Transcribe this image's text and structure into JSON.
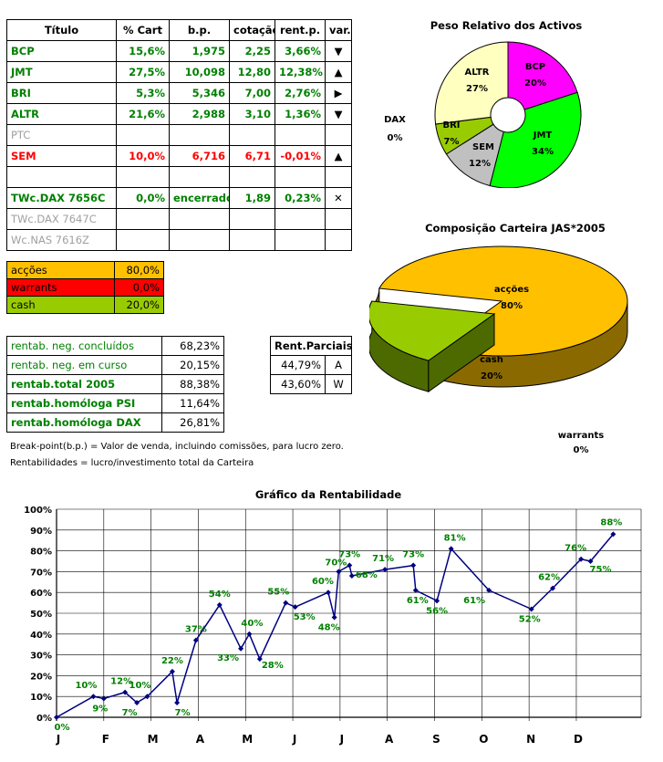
{
  "holdings": {
    "headers": [
      "Título",
      "% Cart",
      "b.p.",
      "cotação",
      "rent.p.",
      "var."
    ],
    "rows": [
      {
        "titulo": "BCP",
        "cart": "15,6%",
        "bp": "1,975",
        "cotacao": "2,25",
        "rent": "3,66%",
        "var": "▼",
        "style": "green"
      },
      {
        "titulo": "JMT",
        "cart": "27,5%",
        "bp": "10,098",
        "cotacao": "12,80",
        "rent": "12,38%",
        "var": "▲",
        "style": "green"
      },
      {
        "titulo": "BRI",
        "cart": "5,3%",
        "bp": "5,346",
        "cotacao": "7,00",
        "rent": "2,76%",
        "var": "▶",
        "style": "green"
      },
      {
        "titulo": "ALTR",
        "cart": "21,6%",
        "bp": "2,988",
        "cotacao": "3,10",
        "rent": "1,36%",
        "var": "▼",
        "style": "green"
      },
      {
        "titulo": "PTC",
        "cart": "",
        "bp": "",
        "cotacao": "",
        "rent": "",
        "var": "",
        "style": "gray"
      },
      {
        "titulo": "SEM",
        "cart": "10,0%",
        "bp": "6,716",
        "cotacao": "6,71",
        "rent": "-0,01%",
        "var": "▲",
        "style": "red"
      },
      {
        "titulo": "",
        "cart": "",
        "bp": "",
        "cotacao": "",
        "rent": "",
        "var": "",
        "style": "green"
      },
      {
        "titulo": "TWc.DAX 7656C",
        "cart": "0,0%",
        "bp": "encerrado",
        "cotacao": "1,89",
        "rent": "0,23%",
        "var": "✕",
        "style": "green"
      },
      {
        "titulo": "TWc.DAX 7647C",
        "cart": "",
        "bp": "",
        "cotacao": "",
        "rent": "",
        "var": "",
        "style": "gray"
      },
      {
        "titulo": "Wc.NAS 7616Z",
        "cart": "",
        "bp": "",
        "cotacao": "",
        "rent": "",
        "var": "",
        "style": "gray"
      }
    ]
  },
  "allocation": [
    {
      "label": "acções",
      "value": "80,0%",
      "color": "#ffc000"
    },
    {
      "label": "warrants",
      "value": "0,0%",
      "color": "#ff0000"
    },
    {
      "label": "cash",
      "value": "20,0%",
      "color": "#99cc00"
    }
  ],
  "returns": [
    {
      "label": "rentab. neg. concluídos",
      "value": "68,23%",
      "bold": false
    },
    {
      "label": "rentab. neg. em curso",
      "value": "20,15%",
      "bold": false
    },
    {
      "label": "rentab.total 2005",
      "value": "88,38%",
      "bold": true
    },
    {
      "label": "rentab.homóloga PSI",
      "value": "11,64%",
      "bold": true
    },
    {
      "label": "rentab.homóloga DAX",
      "value": "26,81%",
      "bold": true
    }
  ],
  "partials": {
    "title": "Rent.Parciais",
    "rows": [
      {
        "value": "44,79%",
        "label": "A"
      },
      {
        "value": "43,60%",
        "label": "W"
      }
    ]
  },
  "notes": {
    "breakpoint": "Break-point(b.p.) = Valor de venda, incluindo comissões, para lucro zero.",
    "rentabilidades": "Rentabilidades = lucro/investimento total da Carteira"
  },
  "chart_data": [
    {
      "type": "pie",
      "title": "Peso Relativo dos Activos",
      "slices": [
        {
          "label": "BCP",
          "value": 20,
          "text": "20%",
          "color": "#ff00ff"
        },
        {
          "label": "JMT",
          "value": 34,
          "text": "34%",
          "color": "#00ff00"
        },
        {
          "label": "SEM",
          "value": 12,
          "text": "12%",
          "color": "#c0c0c0"
        },
        {
          "label": "BRI",
          "value": 7,
          "text": "7%",
          "color": "#99cc00"
        },
        {
          "label": "ALTR",
          "value": 27,
          "text": "27%",
          "color": "#ffffc0"
        },
        {
          "label": "DAX",
          "value": 0,
          "text": "0%",
          "color": "#ffffff"
        }
      ]
    },
    {
      "type": "pie",
      "title": "Composição Carteira JAS*2005",
      "slices": [
        {
          "label": "acções",
          "value": 80,
          "text": "80%",
          "color": "#ffc000"
        },
        {
          "label": "warrants",
          "value": 0,
          "text": "0%",
          "color": "#ff0000"
        },
        {
          "label": "cash",
          "value": 20,
          "text": "20%",
          "color": "#99cc00"
        }
      ]
    },
    {
      "type": "line",
      "title": "Gráfico da Rentabilidade",
      "ylim": [
        0,
        100
      ],
      "yticks": [
        "0%",
        "10%",
        "20%",
        "30%",
        "40%",
        "50%",
        "60%",
        "70%",
        "80%",
        "90%",
        "100%"
      ],
      "months": [
        "J",
        "F",
        "M",
        "A",
        "M",
        "J",
        "J",
        "A",
        "S",
        "O",
        "N",
        "D"
      ],
      "xlim": [
        0,
        12
      ],
      "series": [
        {
          "name": "rentabilidade",
          "color": "#000080",
          "points": [
            {
              "x": 0.0,
              "y": 0,
              "label": "0%"
            },
            {
              "x": 0.78,
              "y": 10,
              "label": "10%"
            },
            {
              "x": 1.0,
              "y": 9,
              "label": "9%"
            },
            {
              "x": 1.45,
              "y": 12,
              "label": "12%"
            },
            {
              "x": 1.7,
              "y": 7,
              "label": "7%"
            },
            {
              "x": 1.92,
              "y": 10,
              "label": "10%"
            },
            {
              "x": 2.45,
              "y": 22,
              "label": "22%"
            },
            {
              "x": 2.55,
              "y": 7,
              "label": "7%"
            },
            {
              "x": 2.95,
              "y": 37,
              "label": "37%"
            },
            {
              "x": 3.45,
              "y": 54,
              "label": "54%"
            },
            {
              "x": 3.9,
              "y": 33,
              "label": "33%"
            },
            {
              "x": 4.08,
              "y": 40,
              "label": "40%"
            },
            {
              "x": 4.3,
              "y": 28,
              "label": "28%"
            },
            {
              "x": 4.85,
              "y": 55,
              "label": "55%"
            },
            {
              "x": 5.05,
              "y": 53,
              "label": "53%"
            },
            {
              "x": 5.75,
              "y": 60,
              "label": "60%"
            },
            {
              "x": 5.88,
              "y": 48,
              "label": "48%"
            },
            {
              "x": 5.97,
              "y": 70,
              "label": "70%"
            },
            {
              "x": 6.2,
              "y": 73,
              "label": "73%"
            },
            {
              "x": 6.25,
              "y": 68,
              "label": "68%"
            },
            {
              "x": 6.95,
              "y": 71,
              "label": "71%"
            },
            {
              "x": 7.55,
              "y": 73,
              "label": "73%"
            },
            {
              "x": 7.6,
              "y": 61,
              "label": "61%"
            },
            {
              "x": 8.05,
              "y": 56,
              "label": "56%"
            },
            {
              "x": 8.35,
              "y": 81,
              "label": "81%"
            },
            {
              "x": 9.15,
              "y": 61,
              "label": "61%"
            },
            {
              "x": 10.05,
              "y": 52,
              "label": "52%"
            },
            {
              "x": 10.5,
              "y": 62,
              "label": "62%"
            },
            {
              "x": 11.1,
              "y": 76,
              "label": "76%"
            },
            {
              "x": 11.3,
              "y": 75,
              "label": "75%"
            },
            {
              "x": 11.78,
              "y": 88,
              "label": "88%"
            }
          ]
        }
      ]
    }
  ]
}
